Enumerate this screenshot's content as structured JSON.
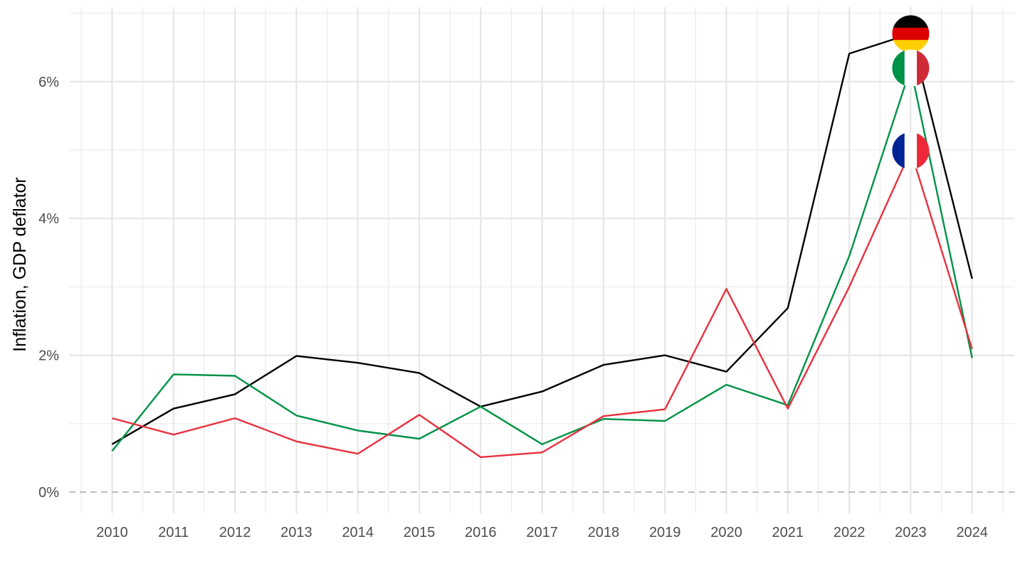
{
  "chart_data": {
    "type": "line",
    "ylabel": "Inflation, GDP deflator",
    "xlabel": "",
    "x": [
      2010,
      2011,
      2012,
      2013,
      2014,
      2015,
      2016,
      2017,
      2018,
      2019,
      2020,
      2021,
      2022,
      2023,
      2024
    ],
    "x_tick_labels": [
      "2010",
      "2011",
      "2012",
      "2013",
      "2014",
      "2015",
      "2016",
      "2017",
      "2018",
      "2019",
      "2020",
      "2021",
      "2022",
      "2023",
      "2024"
    ],
    "ylim": [
      -0.3,
      7.0
    ],
    "y_ticks": [
      0,
      2,
      4,
      6
    ],
    "y_tick_labels": [
      "0%",
      "2%",
      "4%",
      "6%"
    ],
    "grid": true,
    "zero_line": "dashed",
    "series": [
      {
        "flag": "germany",
        "color": "#000000",
        "values": [
          0.7,
          1.22,
          1.43,
          1.99,
          1.89,
          1.74,
          1.25,
          1.47,
          1.86,
          2.0,
          1.76,
          2.69,
          6.41,
          6.7,
          3.12
        ]
      },
      {
        "flag": "italy",
        "color": "#009246",
        "values": [
          0.6,
          1.72,
          1.7,
          1.12,
          0.9,
          0.78,
          1.25,
          0.7,
          1.07,
          1.04,
          1.57,
          1.27,
          3.45,
          6.2,
          1.96
        ]
      },
      {
        "flag": "france",
        "color": "#E8313F",
        "values": [
          1.08,
          0.84,
          1.08,
          0.74,
          0.56,
          1.13,
          0.51,
          0.58,
          1.11,
          1.21,
          2.97,
          1.22,
          3.0,
          4.99,
          2.09
        ]
      }
    ]
  }
}
